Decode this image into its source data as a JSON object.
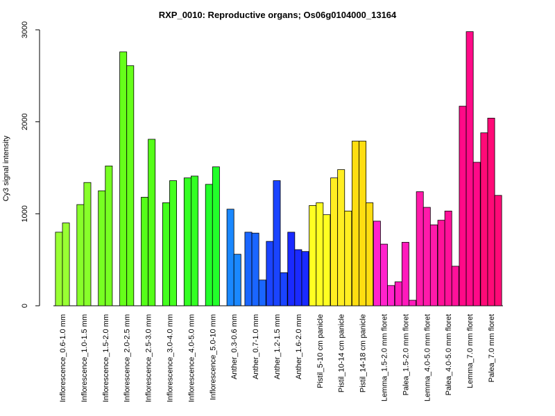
{
  "chart_data": {
    "type": "bar",
    "title": "RXP_0010: Reproductive organs; Os06g0104000_13164",
    "ylabel": "Cy3 signal intensity",
    "xlabel": "",
    "ylim": [
      0,
      3000
    ],
    "yticks": [
      0,
      1000,
      2000,
      3000
    ],
    "grid": false,
    "groups": [
      {
        "label": "Inflorescence_0.6-1.0 mm",
        "color": "#99ff33",
        "values": [
          800,
          900
        ]
      },
      {
        "label": "Inflorescence_1.0-1.5 mm",
        "color": "#88ff2a",
        "values": [
          1100,
          1340
        ]
      },
      {
        "label": "Inflorescence_1.5-2.0 mm",
        "color": "#77ff22",
        "values": [
          1250,
          1520
        ]
      },
      {
        "label": "Inflorescence_2.0-2.5 mm",
        "color": "#66ff1a",
        "values": [
          2760,
          2610
        ]
      },
      {
        "label": "Inflorescence_2.5-3.0 mm",
        "color": "#55ff18",
        "values": [
          1180,
          1810
        ]
      },
      {
        "label": "Inflorescence_3.0-4.0 mm",
        "color": "#44ff1e",
        "values": [
          1120,
          1360
        ]
      },
      {
        "label": "Inflorescence_4.0-5.0 mm",
        "color": "#33ff22",
        "values": [
          1390,
          1410
        ]
      },
      {
        "label": "Inflorescence_5.0-10 mm",
        "color": "#22ff2a",
        "values": [
          1320,
          1510
        ]
      },
      {
        "label": "Anther_0.3-0.6 mm",
        "color": "#1a88ff",
        "values": [
          1050,
          560
        ]
      },
      {
        "label": "Anther_0.7-1.0 mm",
        "color": "#1a66ff",
        "values": [
          800,
          790,
          280
        ]
      },
      {
        "label": "Anther_1.2-1.5 mm",
        "color": "#1a44ff",
        "values": [
          700,
          1360,
          360
        ]
      },
      {
        "label": "Anther_1.6-2.0 mm",
        "color": "#1a2aff",
        "values": [
          800,
          610,
          590
        ]
      },
      {
        "label": "Pistil_5-10 cm panicle",
        "color": "#ffff22",
        "values": [
          1090,
          1120,
          990
        ]
      },
      {
        "label": "Pistil_10-14 cm panicle",
        "color": "#ffee22",
        "values": [
          1390,
          1480,
          1030
        ]
      },
      {
        "label": "Pistil_14-18 cm panicle",
        "color": "#ffdd11",
        "values": [
          1790,
          1790,
          1120
        ]
      },
      {
        "label": "Lemma_1.5-2.0 mm floret",
        "color": "#ff22cc",
        "values": [
          920,
          670,
          220
        ]
      },
      {
        "label": "Palea_1.5-2.0 mm floret",
        "color": "#ff1abb",
        "values": [
          260,
          690,
          60
        ]
      },
      {
        "label": "Lemma_4.0-5.0 mm floret",
        "color": "#ff1aaa",
        "values": [
          1240,
          1070,
          880
        ]
      },
      {
        "label": "Palea_4.0-5.0 mm floret",
        "color": "#ff1199",
        "values": [
          930,
          1030,
          430
        ]
      },
      {
        "label": "Lemma_7.0 mm floret",
        "color": "#ff0a88",
        "values": [
          2170,
          2980,
          1560
        ]
      },
      {
        "label": "Palea_7.0 mm floret",
        "color": "#ff0a77",
        "values": [
          1880,
          2040,
          1200
        ]
      }
    ]
  }
}
